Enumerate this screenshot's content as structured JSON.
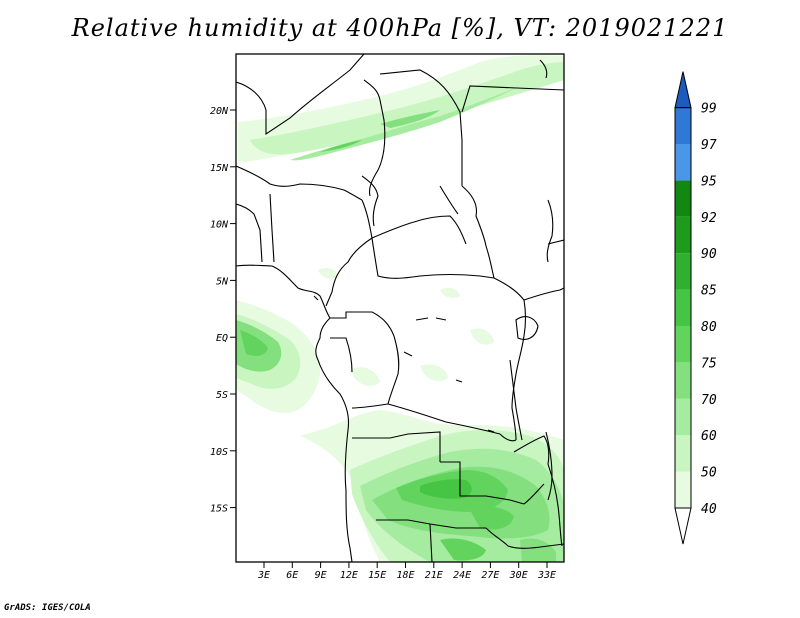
{
  "title": "Relative humidity at 400hPa [%], VT: 2019021221",
  "credit": "GrADS: IGES/COLA",
  "map": {
    "lat_labels": [
      "20N",
      "15N",
      "10N",
      "5N",
      "EQ",
      "5S",
      "10S",
      "15S"
    ],
    "lon_labels": [
      "3E",
      "6E",
      "9E",
      "12E",
      "15E",
      "18E",
      "21E",
      "24E",
      "27E",
      "30E",
      "33E"
    ]
  },
  "colorbar": {
    "levels": [
      "40",
      "50",
      "60",
      "70",
      "75",
      "80",
      "85",
      "90",
      "92",
      "95",
      "97",
      "99"
    ],
    "colors": [
      "#e6fbe0",
      "#c8f5c0",
      "#a6eca0",
      "#84e07e",
      "#62d45e",
      "#46c443",
      "#30b02e",
      "#1e9a1c",
      "#128812",
      "#4a96e8",
      "#2f78d6",
      "#1e5bbf"
    ],
    "under_color": "#ffffff",
    "over_color": "#1e5bbf"
  }
}
